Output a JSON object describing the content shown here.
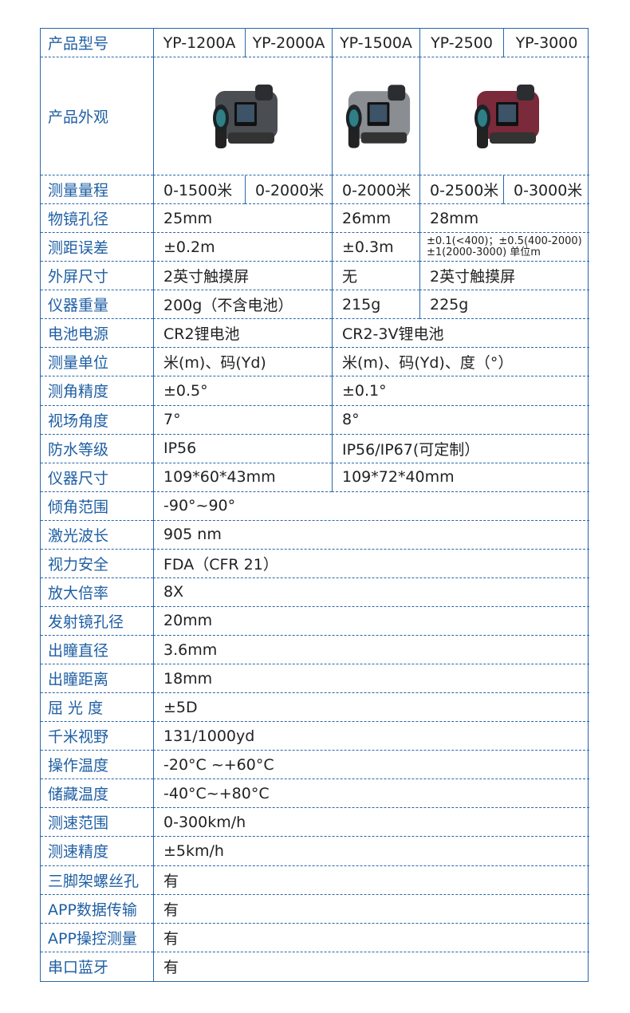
{
  "header": {
    "label": "产品型号",
    "models": [
      "YP-1200A",
      "YP-2000A",
      "YP-1500A",
      "YP-2500",
      "YP-3000"
    ]
  },
  "appearance": {
    "label": "产品外观",
    "images": [
      {
        "name": "rangefinder-gray",
        "color": "#4a4d52"
      },
      {
        "name": "rangefinder-silver",
        "color": "#8a8e93"
      },
      {
        "name": "rangefinder-red",
        "color": "#7a2a3a"
      }
    ]
  },
  "rows": [
    {
      "label": "测量量程",
      "cells": [
        "0-1500米",
        "0-2000米",
        "0-2000米",
        "0-2500米",
        "0-3000米"
      ]
    },
    {
      "label": "物镜孔径",
      "cells": [
        "25mm",
        "26mm",
        "28mm"
      ]
    },
    {
      "label": "测距误差",
      "cells": [
        "±0.2m",
        "±0.3m",
        "±0.1(<400)；±0.5(400-2000)\n±1(2000-3000) 单位m"
      ]
    },
    {
      "label": "外屏尺寸",
      "cells": [
        "2英寸触摸屏",
        "无",
        "2英寸触摸屏"
      ]
    },
    {
      "label": "仪器重量",
      "cells": [
        "200g（不含电池）",
        "215g",
        "225g"
      ]
    },
    {
      "label": "电池电源",
      "cells": [
        "CR2锂电池",
        "CR2-3V锂电池"
      ]
    },
    {
      "label": "测量单位",
      "cells": [
        "米(m)、码(Yd)",
        "米(m)、码(Yd)、度（°）"
      ]
    },
    {
      "label": "测角精度",
      "cells": [
        "±0.5°",
        "±0.1°"
      ]
    },
    {
      "label": "视场角度",
      "cells": [
        "7°",
        "8°"
      ]
    },
    {
      "label": "防水等级",
      "cells": [
        "IP56",
        "IP56/IP67(可定制）"
      ]
    },
    {
      "label": "仪器尺寸",
      "cells": [
        "109*60*43mm",
        "109*72*40mm"
      ]
    },
    {
      "label": "倾角范围",
      "cells": [
        "-90°~90°"
      ]
    },
    {
      "label": "激光波长",
      "cells": [
        "905 nm"
      ]
    },
    {
      "label": "视力安全",
      "cells": [
        "FDA（CFR 21）"
      ]
    },
    {
      "label": "放大倍率",
      "cells": [
        "8X"
      ]
    },
    {
      "label": "发射镜孔径",
      "cells": [
        "20mm"
      ]
    },
    {
      "label": "出瞳直径",
      "cells": [
        "3.6mm"
      ]
    },
    {
      "label": "出瞳距离",
      "cells": [
        "18mm"
      ]
    },
    {
      "label": "屈 光 度",
      "cells": [
        "±5D"
      ]
    },
    {
      "label": "千米视野",
      "cells": [
        "131/1000yd"
      ]
    },
    {
      "label": "操作温度",
      "cells": [
        "-20°C ~+60°C"
      ]
    },
    {
      "label": "储藏温度",
      "cells": [
        " -40°C~+80°C"
      ]
    },
    {
      "label": "测速范围",
      "cells": [
        "0-300km/h"
      ]
    },
    {
      "label": "测速精度",
      "cells": [
        " ±5km/h"
      ]
    },
    {
      "label": "三脚架螺丝孔",
      "cells": [
        "有"
      ]
    },
    {
      "label": "APP数据传输",
      "cells": [
        "有"
      ]
    },
    {
      "label": "APP操控测量",
      "cells": [
        "有"
      ]
    },
    {
      "label": "串口蓝牙",
      "cells": [
        "有"
      ]
    }
  ]
}
